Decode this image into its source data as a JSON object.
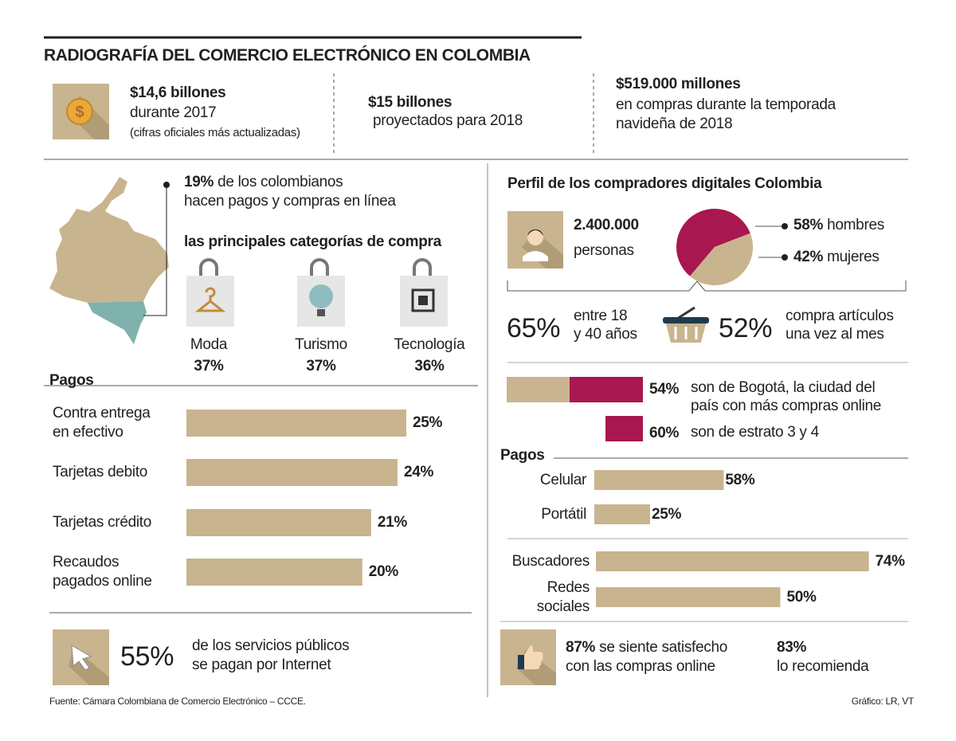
{
  "title": "RADIOGRAFÍA DEL COMERCIO ELECTRÓNICO EN COLOMBIA",
  "highlights": [
    {
      "amount": "$14,6 billones",
      "lines": [
        "durante 2017",
        "(cifras oficiales más actualizadas)"
      ]
    },
    {
      "amount": "$15 billones",
      "lines": [
        "proyectados para 2018"
      ]
    },
    {
      "amount": "$519.000 millones",
      "lines": [
        "en compras durante la temporada",
        "navideña de 2018"
      ]
    }
  ],
  "online_share": {
    "value": "19%",
    "lines": [
      "de los colombianos",
      "hacen pagos y compras en línea"
    ]
  },
  "categories": {
    "title": "las principales categorías de compra",
    "items": [
      {
        "name": "Moda",
        "value": "37%"
      },
      {
        "name": "Turismo",
        "value": "37%"
      },
      {
        "name": "Tecnología",
        "value": "36%"
      }
    ]
  },
  "payments": {
    "title": "Pagos",
    "color": "#c8b48f",
    "items": [
      {
        "lines": [
          "Contra entrega",
          "en efectivo"
        ],
        "value": 25,
        "value_label": "25%"
      },
      {
        "lines": [
          "Tarjetas debito"
        ],
        "value": 24,
        "value_label": "24%"
      },
      {
        "lines": [
          "Tarjetas crédito"
        ],
        "value": 21,
        "value_label": "21%"
      },
      {
        "lines": [
          "Recaudos",
          "pagados online"
        ],
        "value": 20,
        "value_label": "20%"
      }
    ]
  },
  "public_services": {
    "value": "55%",
    "lines": [
      "de los servicios públicos",
      "se pagan por Internet"
    ]
  },
  "profile": {
    "title": "Perfil de los compradores digitales Colombia",
    "buyers": {
      "value": "2.400.000",
      "label": "personas"
    },
    "gender": {
      "type": "pie",
      "items": [
        {
          "name": "hombres",
          "value": 58,
          "value_label": "58%",
          "color": "#a8174f"
        },
        {
          "name": "mujeres",
          "value": 42,
          "value_label": "42%",
          "color": "#c8b48f"
        }
      ]
    },
    "age": {
      "value": "65%",
      "lines": [
        "entre 18",
        "y 40 años"
      ]
    },
    "frequency": {
      "value": "52%",
      "lines": [
        "compra artículos",
        "una vez al mes"
      ]
    },
    "bogota": {
      "value": "54%",
      "lines": [
        "son de Bogotá, la ciudad del",
        "país con más compras online"
      ]
    },
    "stratum": {
      "value": "60%",
      "text": "son de estrato 3 y 4"
    },
    "payments": {
      "title": "Pagos",
      "color": "#c8b48f",
      "items": [
        {
          "lines": [
            "Celular"
          ],
          "value": 58,
          "value_label": "58%"
        },
        {
          "lines": [
            "Portátil"
          ],
          "value": 25,
          "value_label": "25%"
        }
      ]
    },
    "channels": {
      "color": "#c8b48f",
      "items": [
        {
          "lines": [
            "Buscadores"
          ],
          "value": 74,
          "value_label": "74%"
        },
        {
          "lines": [
            "Redes",
            "sociales"
          ],
          "value": 50,
          "value_label": "50%"
        }
      ]
    },
    "satisfaction": {
      "value": "87%",
      "lines": [
        "se siente satisfecho",
        "con las compras online"
      ]
    },
    "recommend": {
      "value": "83%",
      "text": "lo recomienda"
    }
  },
  "source": "Fuente: Cámara Colombiana de Comercio Electrónico – CCCE.",
  "credit": "Gráfico: LR, VT"
}
